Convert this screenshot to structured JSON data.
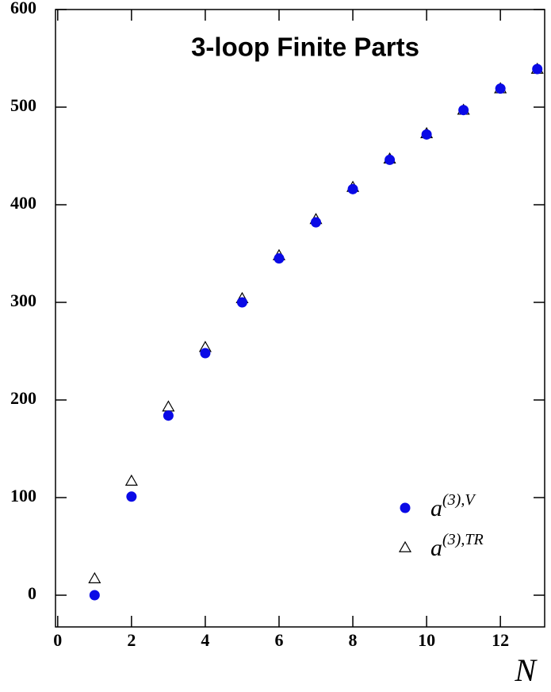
{
  "chart_data": {
    "type": "scatter",
    "title": "3-loop Finite Parts",
    "x_label": "N",
    "series": [
      {
        "name": "a(3),V",
        "marker": "circle",
        "color": "#0a0ae6",
        "x": [
          1,
          2,
          3,
          4,
          5,
          6,
          7,
          8,
          9,
          10,
          11,
          12,
          13
        ],
        "values": [
          0,
          101,
          184,
          248,
          300,
          345,
          382,
          416,
          446,
          472,
          497,
          519,
          539
        ]
      },
      {
        "name": "a(3),TR",
        "marker": "triangle",
        "color": "#000000",
        "x": [
          1,
          2,
          3,
          4,
          5,
          6,
          7,
          8,
          9,
          10,
          11,
          12,
          13
        ],
        "values": [
          17,
          117,
          193,
          254,
          304,
          348,
          385,
          418,
          447,
          473,
          497,
          519,
          539
        ]
      }
    ],
    "xlim": [
      -0.06,
      13.2
    ],
    "xticks": [
      0,
      2,
      4,
      6,
      8,
      10,
      12
    ],
    "ylim": [
      -32.5,
      600
    ],
    "yticks": [
      0,
      100,
      200,
      300,
      400,
      500,
      600
    ]
  }
}
